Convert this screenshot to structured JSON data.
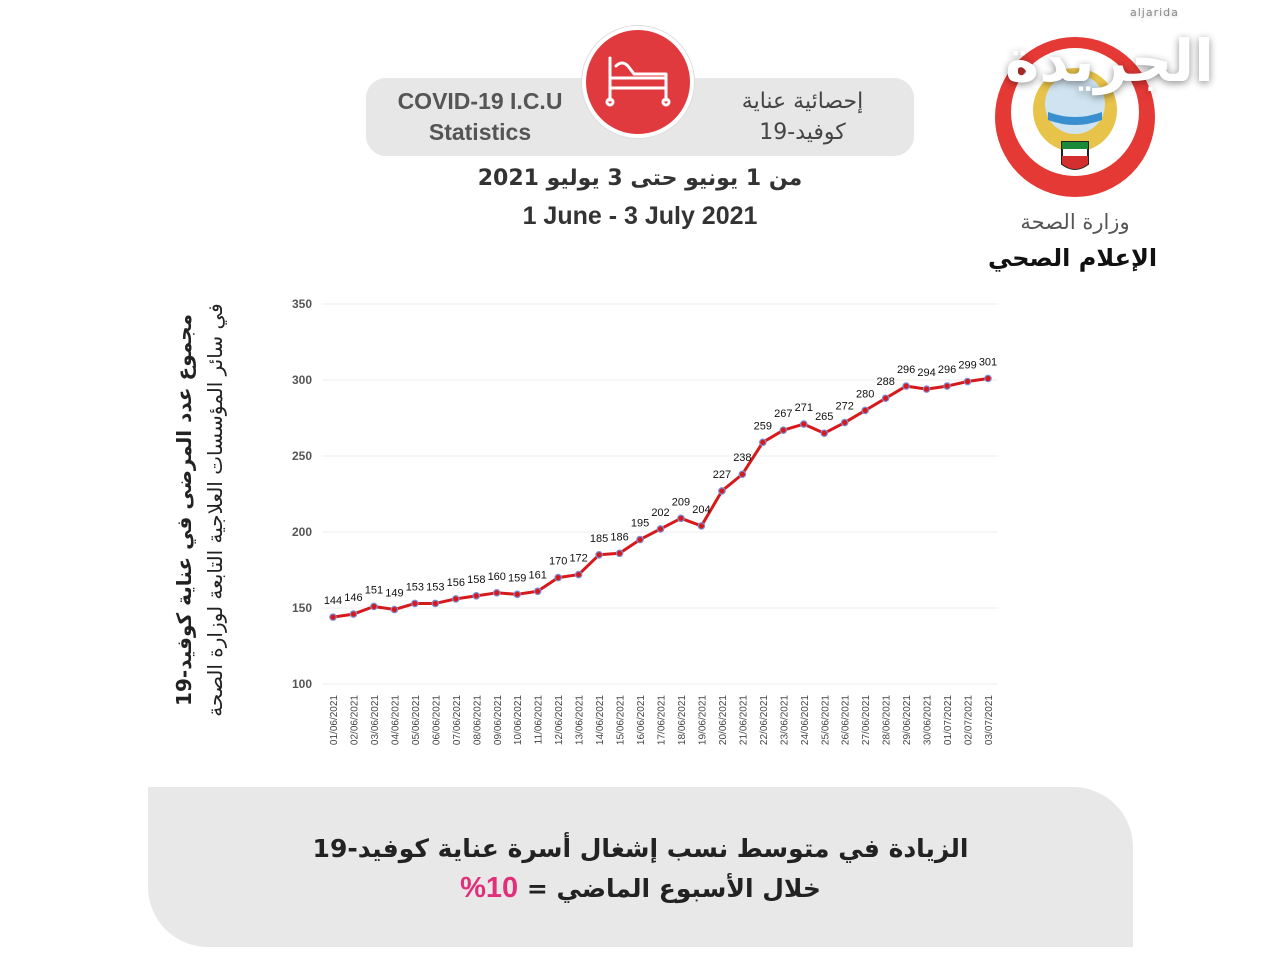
{
  "header": {
    "title_en_line1": "COVID-19 I.C.U",
    "title_en_line2": "Statistics",
    "title_ar_line1": "إحصائية عناية",
    "title_ar_line2": "كوفيد-19",
    "date_ar": "من 1 يونيو حتى 3 يوليو 2021",
    "date_en": "1 June - 3 July 2021",
    "icon": "hospital-bed-icon"
  },
  "branding": {
    "watermark": "الجريدة",
    "watermark_sub": "aljarida",
    "ministry": "وزارة الصحة",
    "department": "الإعلام الصحي"
  },
  "footer": {
    "line1": "الزيادة في متوسط نسب إشغال أسرة عناية كوفيد-19",
    "line2_text": "خلال الأسبوع الماضي =",
    "line2_value": "10%",
    "accent_color": "#e0307a"
  },
  "chart_data": {
    "type": "line",
    "title": "",
    "ylabel_line1": "مجموع عدد المرضى في عناية كوفيد-19",
    "ylabel_line2": "في سائر المؤسسات العلاجية التابعة لوزارة الصحة",
    "xlabel": "",
    "ylim": [
      100,
      350
    ],
    "yticks": [
      100,
      150,
      200,
      250,
      300,
      350
    ],
    "grid": true,
    "line_color": "#d7191c",
    "marker_color": "#7b8fd6",
    "x": [
      "01/06/2021",
      "02/06/2021",
      "03/06/2021",
      "04/06/2021",
      "05/06/2021",
      "06/06/2021",
      "07/06/2021",
      "08/06/2021",
      "09/06/2021",
      "10/06/2021",
      "11/06/2021",
      "12/06/2021",
      "13/06/2021",
      "14/06/2021",
      "15/06/2021",
      "16/06/2021",
      "17/06/2021",
      "18/06/2021",
      "19/06/2021",
      "20/06/2021",
      "21/06/2021",
      "22/06/2021",
      "23/06/2021",
      "24/06/2021",
      "25/06/2021",
      "26/06/2021",
      "27/06/2021",
      "28/06/2021",
      "29/06/2021",
      "30/06/2021",
      "01/07/2021",
      "02/07/2021",
      "03/07/2021"
    ],
    "values": [
      144,
      146,
      151,
      149,
      153,
      153,
      156,
      158,
      160,
      159,
      161,
      170,
      172,
      185,
      186,
      195,
      202,
      209,
      204,
      227,
      238,
      259,
      267,
      271,
      265,
      272,
      280,
      288,
      296,
      294,
      296,
      299,
      301
    ]
  }
}
